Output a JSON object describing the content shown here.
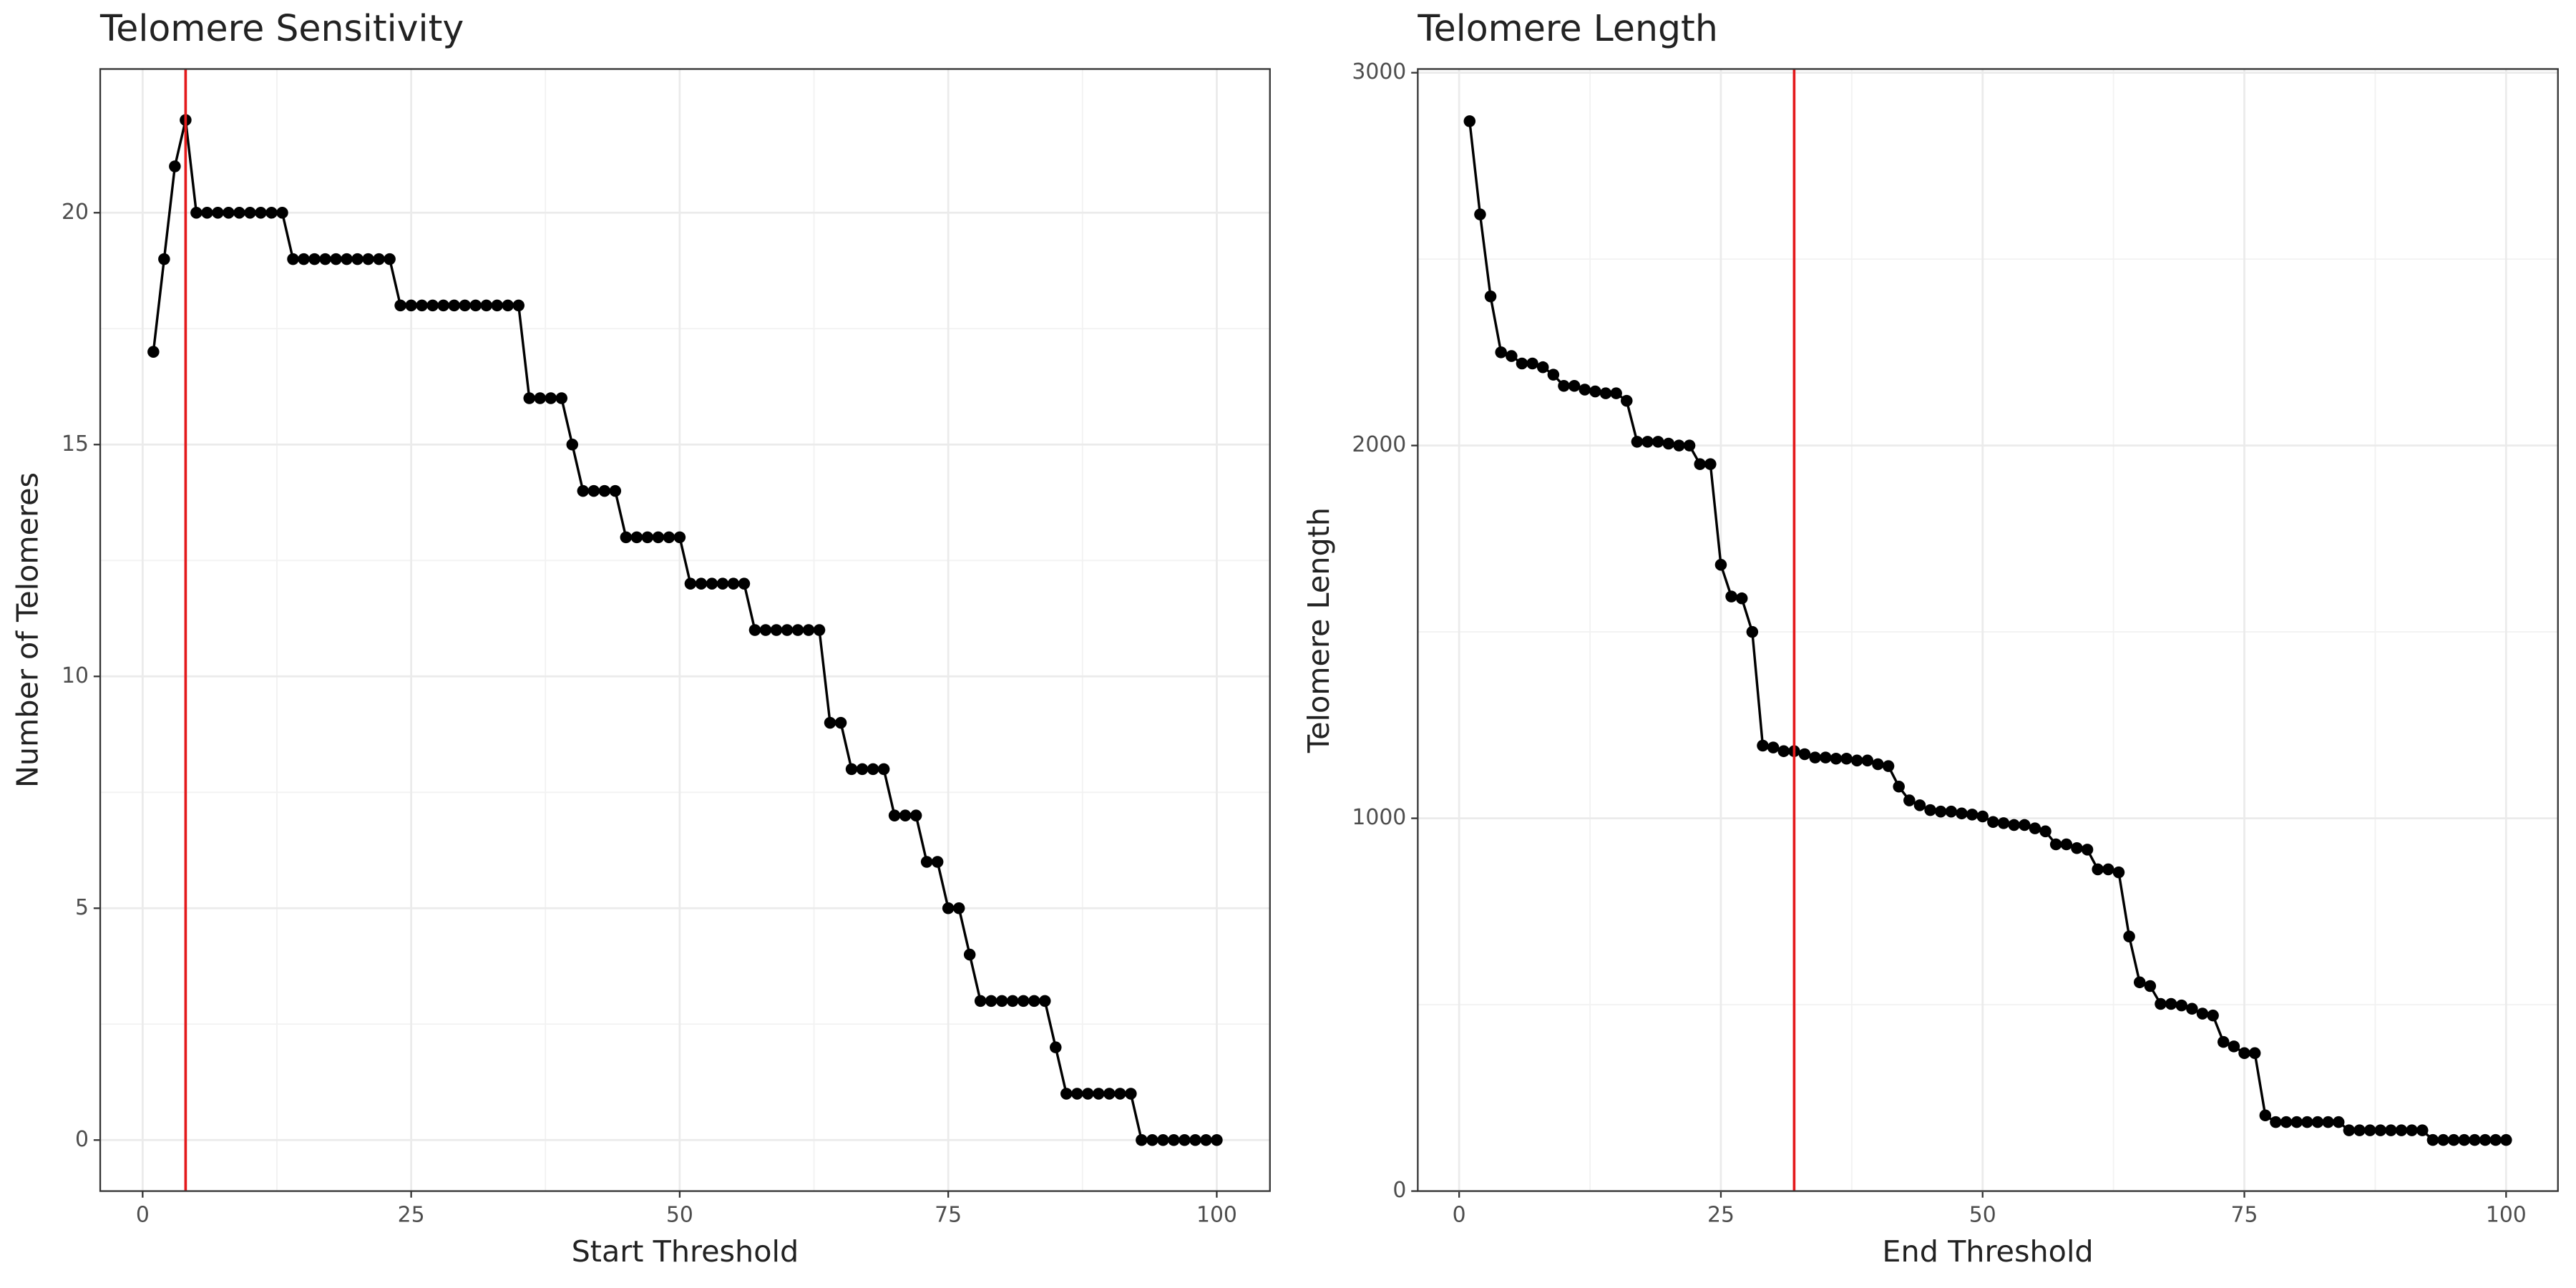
{
  "chart_data": [
    {
      "type": "line",
      "title": "Telomere Sensitivity",
      "x_label": "Start Threshold",
      "y_label": "Number of Telomeres",
      "x": [
        1,
        2,
        3,
        4,
        5,
        6,
        7,
        8,
        9,
        10,
        11,
        12,
        13,
        14,
        15,
        16,
        17,
        18,
        19,
        20,
        21,
        22,
        23,
        24,
        25,
        26,
        27,
        28,
        29,
        30,
        31,
        32,
        33,
        34,
        35,
        36,
        37,
        38,
        39,
        40,
        41,
        42,
        43,
        44,
        45,
        46,
        47,
        48,
        49,
        50,
        51,
        52,
        53,
        54,
        55,
        56,
        57,
        58,
        59,
        60,
        61,
        62,
        63,
        64,
        65,
        66,
        67,
        68,
        69,
        70,
        71,
        72,
        73,
        74,
        75,
        76,
        77,
        78,
        79,
        80,
        81,
        82,
        83,
        84,
        85,
        86,
        87,
        88,
        89,
        90,
        91,
        92,
        93,
        94,
        95,
        96,
        97,
        98,
        99,
        100
      ],
      "series": [
        {
          "color": "#000000",
          "values": [
            17,
            19,
            21,
            22,
            20,
            20,
            20,
            20,
            20,
            20,
            20,
            20,
            20,
            19,
            19,
            19,
            19,
            19,
            19,
            19,
            19,
            19,
            19,
            18,
            18,
            18,
            18,
            18,
            18,
            18,
            18,
            18,
            18,
            18,
            18,
            16,
            16,
            16,
            16,
            15,
            14,
            14,
            14,
            14,
            13,
            13,
            13,
            13,
            13,
            13,
            12,
            12,
            12,
            12,
            12,
            12,
            11,
            11,
            11,
            11,
            11,
            11,
            11,
            9,
            9,
            8,
            8,
            8,
            8,
            7,
            7,
            7,
            6,
            6,
            5,
            5,
            4,
            3,
            3,
            3,
            3,
            3,
            3,
            3,
            2,
            1,
            1,
            1,
            1,
            1,
            1,
            1,
            0,
            0,
            0,
            0,
            0,
            0,
            0,
            0
          ]
        }
      ],
      "vline": {
        "x": 4,
        "color": "#e41a1c"
      },
      "xlim": [
        -3.95,
        104.95
      ],
      "xticks": [
        0,
        25,
        50,
        75,
        100
      ],
      "ylim": [
        -1.1,
        23.1
      ],
      "yticks": [
        0,
        5,
        10,
        15,
        20
      ],
      "grid": true,
      "minor_grid": true
    },
    {
      "type": "line",
      "title": "Telomere Length",
      "x_label": "End Threshold",
      "y_label": "Telomere Length",
      "x": [
        1,
        2,
        3,
        4,
        5,
        6,
        7,
        8,
        9,
        10,
        11,
        12,
        13,
        14,
        15,
        16,
        17,
        18,
        19,
        20,
        21,
        22,
        23,
        24,
        25,
        26,
        27,
        28,
        29,
        30,
        31,
        32,
        33,
        34,
        35,
        36,
        37,
        38,
        39,
        40,
        41,
        42,
        43,
        44,
        45,
        46,
        47,
        48,
        49,
        50,
        51,
        52,
        53,
        54,
        55,
        56,
        57,
        58,
        59,
        60,
        61,
        62,
        63,
        64,
        65,
        66,
        67,
        68,
        69,
        70,
        71,
        72,
        73,
        74,
        75,
        76,
        77,
        78,
        79,
        80,
        81,
        82,
        83,
        84,
        85,
        86,
        87,
        88,
        89,
        90,
        91,
        92,
        93,
        94,
        95,
        96,
        97,
        98,
        99,
        100
      ],
      "series": [
        {
          "color": "#000000",
          "values": [
            2870,
            2620,
            2400,
            2250,
            2240,
            2220,
            2220,
            2210,
            2190,
            2160,
            2160,
            2150,
            2145,
            2140,
            2140,
            2120,
            2010,
            2010,
            2010,
            2005,
            2000,
            2000,
            1950,
            1950,
            1680,
            1595,
            1590,
            1500,
            1195,
            1190,
            1180,
            1180,
            1172,
            1163,
            1163,
            1160,
            1160,
            1155,
            1155,
            1145,
            1140,
            1085,
            1048,
            1035,
            1022,
            1018,
            1018,
            1013,
            1010,
            1005,
            990,
            987,
            982,
            982,
            973,
            965,
            930,
            930,
            920,
            916,
            863,
            863,
            855,
            683,
            560,
            550,
            502,
            502,
            498,
            489,
            476,
            471,
            400,
            388,
            370,
            370,
            203,
            185,
            185,
            185,
            185,
            185,
            185,
            185,
            163,
            163,
            163,
            163,
            163,
            163,
            163,
            163,
            137,
            137,
            137,
            137,
            137,
            137,
            137,
            137
          ]
        }
      ],
      "vline": {
        "x": 32,
        "color": "#e41a1c"
      },
      "xlim": [
        -3.95,
        104.95
      ],
      "xticks": [
        0,
        25,
        50,
        75,
        100
      ],
      "ylim": [
        0,
        3010
      ],
      "yticks": [
        0,
        1000,
        2000,
        3000
      ],
      "grid": true,
      "minor_grid": true
    }
  ]
}
